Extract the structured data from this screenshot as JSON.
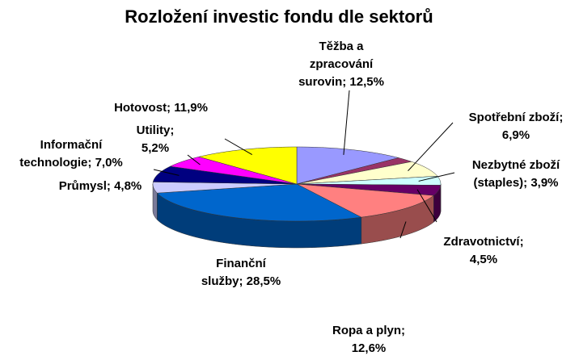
{
  "chart_data": {
    "type": "pie3d",
    "title": "Rozložení investic fondu dle sektorů",
    "values": [
      12.5,
      2.2,
      6.9,
      3.9,
      4.5,
      12.6,
      28.5,
      4.8,
      7.0,
      5.2,
      11.9
    ],
    "value_labels": [
      [
        "Těžba a",
        "zpracování",
        "surovin; 12,5%"
      ],
      null,
      [
        "Spotřební zboží;",
        "6,9%"
      ],
      [
        "Nezbytné zboží",
        "(staples); 3,9%"
      ],
      [
        "Zdravotnictví;",
        "4,5%"
      ],
      [
        "Ropa a plyn;",
        "12,6%"
      ],
      [
        "Finanční",
        "služby; 28,5%"
      ],
      [
        "Průmysl; 4,8%"
      ],
      [
        "Informační",
        "technologie; 7,0%"
      ],
      [
        "Utility;",
        "5,2%"
      ],
      [
        "Hotovost; 11,9%"
      ]
    ],
    "colors": [
      "#9999ff",
      "#993366",
      "#ffffcc",
      "#ccffff",
      "#660066",
      "#ff8080",
      "#0066cc",
      "#ccccff",
      "#000080",
      "#ff00ff",
      "#ffff00"
    ]
  }
}
